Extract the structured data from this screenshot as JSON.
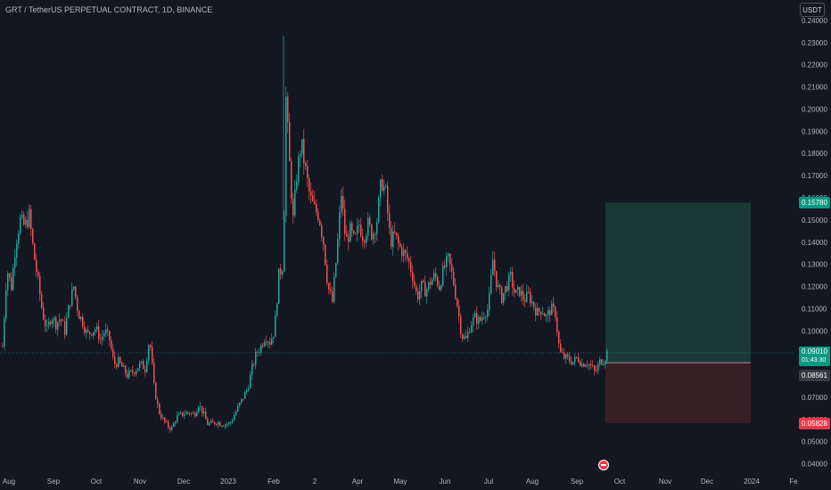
{
  "header": {
    "title": "GRT / TetherUS PERPETUAL CONTRACT, 1D, BINANCE",
    "currency_button": "USDT"
  },
  "price_tags": {
    "target": "0.15780",
    "current": "0.09010",
    "countdown": "01:43:30",
    "entry": "0.08561",
    "stop": "0.05828"
  },
  "colors": {
    "background": "#131722",
    "up": "#26a69a",
    "down": "#ef5350",
    "profit_zone": "#1d3d36",
    "loss_zone": "#3e1f27",
    "axis_text": "#b2b5be"
  },
  "chart_data": {
    "type": "candlestick",
    "title": "GRT / TetherUS PERPETUAL CONTRACT, 1D, BINANCE",
    "timeframe": "1D",
    "ylim": [
      0.037,
      0.242
    ],
    "y_ticks": [
      "0.04000",
      "0.05000",
      "0.06000",
      "0.07000",
      "0.08000",
      "0.09000",
      "0.10000",
      "0.11000",
      "0.12000",
      "0.13000",
      "0.14000",
      "0.15000",
      "0.16000",
      "0.17000",
      "0.18000",
      "0.19000",
      "0.20000",
      "0.21000",
      "0.22000",
      "0.23000",
      "0.24000"
    ],
    "x_ticks": [
      "Aug",
      "Sep",
      "Oct",
      "Nov",
      "Dec",
      "2023",
      "Feb",
      "2",
      "Apr",
      "May",
      "Jun",
      "Jul",
      "Aug",
      "Sep",
      "Oct",
      "Nov",
      "Dec",
      "2024",
      "Fe"
    ],
    "close_series": [
      {
        "t": 0,
        "v": 0.093
      },
      {
        "t": 5,
        "v": 0.128
      },
      {
        "t": 10,
        "v": 0.12
      },
      {
        "t": 15,
        "v": 0.14
      },
      {
        "t": 20,
        "v": 0.15
      },
      {
        "t": 25,
        "v": 0.147
      },
      {
        "t": 30,
        "v": 0.152
      },
      {
        "t": 35,
        "v": 0.135
      },
      {
        "t": 40,
        "v": 0.122
      },
      {
        "t": 45,
        "v": 0.108
      },
      {
        "t": 50,
        "v": 0.1
      },
      {
        "t": 55,
        "v": 0.107
      },
      {
        "t": 60,
        "v": 0.103
      },
      {
        "t": 65,
        "v": 0.106
      },
      {
        "t": 70,
        "v": 0.1
      },
      {
        "t": 75,
        "v": 0.112
      },
      {
        "t": 80,
        "v": 0.12
      },
      {
        "t": 85,
        "v": 0.108
      },
      {
        "t": 90,
        "v": 0.104
      },
      {
        "t": 95,
        "v": 0.098
      },
      {
        "t": 100,
        "v": 0.1
      },
      {
        "t": 105,
        "v": 0.101
      },
      {
        "t": 110,
        "v": 0.096
      },
      {
        "t": 115,
        "v": 0.1
      },
      {
        "t": 120,
        "v": 0.096
      },
      {
        "t": 125,
        "v": 0.085
      },
      {
        "t": 130,
        "v": 0.086
      },
      {
        "t": 135,
        "v": 0.083
      },
      {
        "t": 140,
        "v": 0.08
      },
      {
        "t": 145,
        "v": 0.081
      },
      {
        "t": 150,
        "v": 0.083
      },
      {
        "t": 155,
        "v": 0.085
      },
      {
        "t": 160,
        "v": 0.083
      },
      {
        "t": 165,
        "v": 0.097
      },
      {
        "t": 170,
        "v": 0.075
      },
      {
        "t": 175,
        "v": 0.064
      },
      {
        "t": 180,
        "v": 0.06
      },
      {
        "t": 185,
        "v": 0.057
      },
      {
        "t": 190,
        "v": 0.056
      },
      {
        "t": 195,
        "v": 0.061
      },
      {
        "t": 200,
        "v": 0.062
      },
      {
        "t": 205,
        "v": 0.063
      },
      {
        "t": 210,
        "v": 0.063
      },
      {
        "t": 215,
        "v": 0.062
      },
      {
        "t": 220,
        "v": 0.067
      },
      {
        "t": 225,
        "v": 0.063
      },
      {
        "t": 230,
        "v": 0.058
      },
      {
        "t": 235,
        "v": 0.058
      },
      {
        "t": 240,
        "v": 0.059
      },
      {
        "t": 245,
        "v": 0.058
      },
      {
        "t": 250,
        "v": 0.058
      },
      {
        "t": 255,
        "v": 0.058
      },
      {
        "t": 260,
        "v": 0.062
      },
      {
        "t": 265,
        "v": 0.066
      },
      {
        "t": 270,
        "v": 0.07
      },
      {
        "t": 275,
        "v": 0.074
      },
      {
        "t": 280,
        "v": 0.083
      },
      {
        "t": 285,
        "v": 0.09
      },
      {
        "t": 290,
        "v": 0.093
      },
      {
        "t": 295,
        "v": 0.098
      },
      {
        "t": 300,
        "v": 0.095
      },
      {
        "t": 305,
        "v": 0.1
      },
      {
        "t": 310,
        "v": 0.125
      },
      {
        "t": 315,
        "v": 0.13
      },
      {
        "t": 318,
        "v": 0.205
      },
      {
        "t": 322,
        "v": 0.175
      },
      {
        "t": 326,
        "v": 0.15
      },
      {
        "t": 330,
        "v": 0.17
      },
      {
        "t": 335,
        "v": 0.185
      },
      {
        "t": 340,
        "v": 0.172
      },
      {
        "t": 345,
        "v": 0.16
      },
      {
        "t": 350,
        "v": 0.155
      },
      {
        "t": 355,
        "v": 0.152
      },
      {
        "t": 360,
        "v": 0.14
      },
      {
        "t": 365,
        "v": 0.12
      },
      {
        "t": 370,
        "v": 0.113
      },
      {
        "t": 375,
        "v": 0.135
      },
      {
        "t": 380,
        "v": 0.162
      },
      {
        "t": 385,
        "v": 0.14
      },
      {
        "t": 390,
        "v": 0.145
      },
      {
        "t": 395,
        "v": 0.14
      },
      {
        "t": 400,
        "v": 0.148
      },
      {
        "t": 405,
        "v": 0.142
      },
      {
        "t": 410,
        "v": 0.148
      },
      {
        "t": 415,
        "v": 0.143
      },
      {
        "t": 420,
        "v": 0.15
      },
      {
        "t": 425,
        "v": 0.168
      },
      {
        "t": 430,
        "v": 0.162
      },
      {
        "t": 435,
        "v": 0.14
      },
      {
        "t": 440,
        "v": 0.143
      },
      {
        "t": 445,
        "v": 0.138
      },
      {
        "t": 450,
        "v": 0.135
      },
      {
        "t": 455,
        "v": 0.132
      },
      {
        "t": 460,
        "v": 0.125
      },
      {
        "t": 465,
        "v": 0.115
      },
      {
        "t": 470,
        "v": 0.12
      },
      {
        "t": 475,
        "v": 0.118
      },
      {
        "t": 480,
        "v": 0.122
      },
      {
        "t": 485,
        "v": 0.125
      },
      {
        "t": 490,
        "v": 0.12
      },
      {
        "t": 495,
        "v": 0.128
      },
      {
        "t": 500,
        "v": 0.132
      },
      {
        "t": 505,
        "v": 0.124
      },
      {
        "t": 510,
        "v": 0.112
      },
      {
        "t": 515,
        "v": 0.098
      },
      {
        "t": 520,
        "v": 0.096
      },
      {
        "t": 525,
        "v": 0.103
      },
      {
        "t": 530,
        "v": 0.106
      },
      {
        "t": 535,
        "v": 0.104
      },
      {
        "t": 540,
        "v": 0.108
      },
      {
        "t": 545,
        "v": 0.11
      },
      {
        "t": 550,
        "v": 0.132
      },
      {
        "t": 555,
        "v": 0.12
      },
      {
        "t": 560,
        "v": 0.115
      },
      {
        "t": 565,
        "v": 0.12
      },
      {
        "t": 570,
        "v": 0.124
      },
      {
        "t": 575,
        "v": 0.116
      },
      {
        "t": 580,
        "v": 0.118
      },
      {
        "t": 585,
        "v": 0.114
      },
      {
        "t": 590,
        "v": 0.116
      },
      {
        "t": 595,
        "v": 0.112
      },
      {
        "t": 600,
        "v": 0.108
      },
      {
        "t": 605,
        "v": 0.11
      },
      {
        "t": 610,
        "v": 0.106
      },
      {
        "t": 615,
        "v": 0.11
      },
      {
        "t": 620,
        "v": 0.108
      },
      {
        "t": 625,
        "v": 0.09
      },
      {
        "t": 630,
        "v": 0.088
      },
      {
        "t": 635,
        "v": 0.087
      },
      {
        "t": 640,
        "v": 0.086
      },
      {
        "t": 645,
        "v": 0.088
      },
      {
        "t": 650,
        "v": 0.085
      },
      {
        "t": 655,
        "v": 0.086
      },
      {
        "t": 660,
        "v": 0.084
      },
      {
        "t": 665,
        "v": 0.081
      },
      {
        "t": 670,
        "v": 0.086
      },
      {
        "t": 675,
        "v": 0.087
      },
      {
        "t": 678,
        "v": 0.0901
      }
    ],
    "annotations": {
      "long_position": {
        "entry": 0.08561,
        "target": 0.1578,
        "stop": 0.05828
      },
      "current_price": 0.0901
    }
  }
}
